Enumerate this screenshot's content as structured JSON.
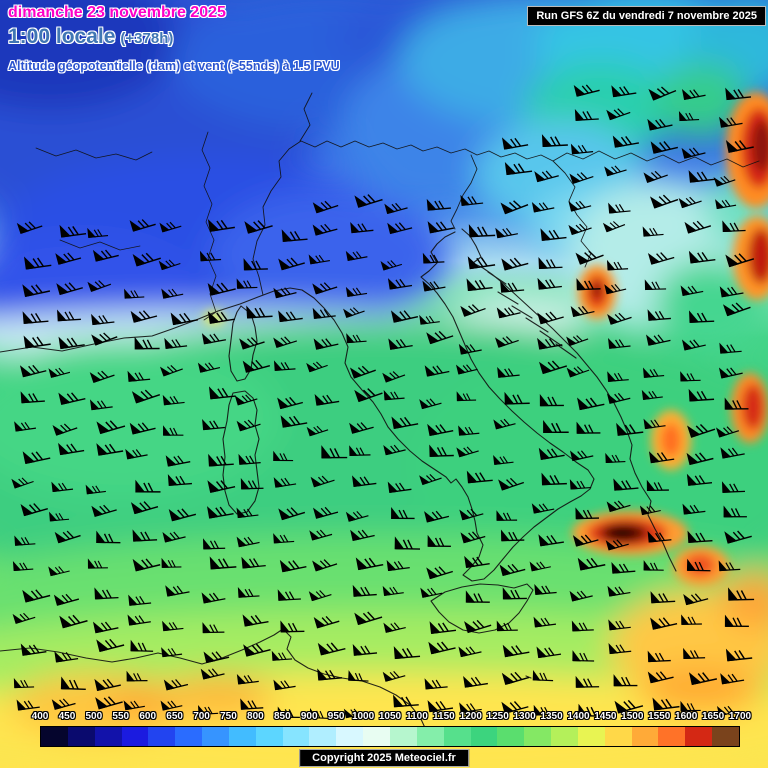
{
  "header": {
    "date_line": "dimanche 23 novembre 2025",
    "time_line": "1:00 locale",
    "forecast_offset": "(+378h)",
    "subtitle": "Altitude géopotentielle (dam) et vent (>55nds) à 1.5 PVU"
  },
  "run_info": {
    "label": "Run GFS 6Z du vendredi 7 novembre 2025"
  },
  "footer": {
    "copyright": "Copyright 2025 Meteociel.fr"
  },
  "scale": {
    "values": [
      400,
      450,
      500,
      550,
      600,
      650,
      700,
      750,
      800,
      850,
      900,
      950,
      1000,
      1050,
      1100,
      1150,
      1200,
      1250,
      1300,
      1350,
      1400,
      1450,
      1500,
      1550,
      1600,
      1650,
      1700
    ],
    "colors": [
      "#05052d",
      "#0a0a6e",
      "#1212aa",
      "#1b1be0",
      "#2244f0",
      "#2a6cff",
      "#3694ff",
      "#42bcff",
      "#5cd6ff",
      "#86e4ff",
      "#b0eeff",
      "#d8f8ff",
      "#e8fdf2",
      "#b6f6ce",
      "#84eeaa",
      "#56e08c",
      "#3cd47e",
      "#5ade6e",
      "#84e864",
      "#b4f05a",
      "#e8f452",
      "#ffd848",
      "#ffaa38",
      "#ff7228",
      "#d42814",
      "#7a431c"
    ]
  },
  "map_colors": {
    "low_geopotential": "#1b1be0",
    "mid_geopotential": "#3cd47e",
    "high_geopotential": "#ffe54f",
    "jet_hotspot": "#d42814"
  }
}
